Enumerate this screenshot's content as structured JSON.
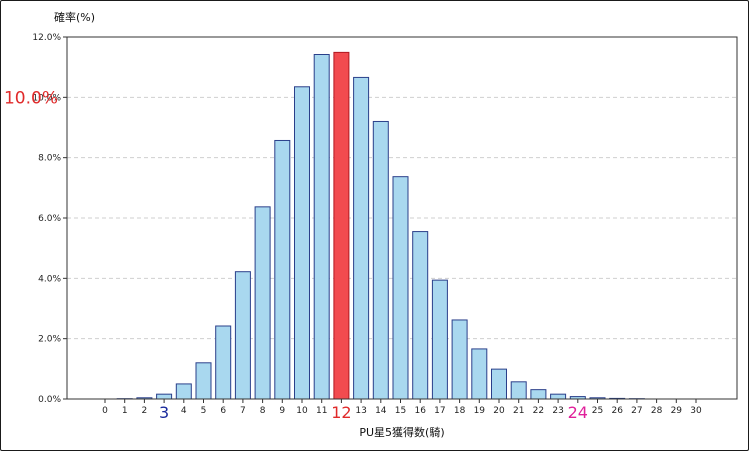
{
  "chart_data": {
    "type": "bar",
    "xlabel": "PU星5獲得数(騎)",
    "ylabel": "確率(%)",
    "ylim": [
      0,
      12
    ],
    "yticks": [
      0,
      2,
      4,
      6,
      8,
      10,
      12
    ],
    "ytick_labels": [
      "0.0%",
      "2.0%",
      "4.0%",
      "6.0%",
      "8.0%",
      "10.0%",
      "12.0%"
    ],
    "grid": "horizontal-dashed",
    "categories": [
      "0",
      "1",
      "2",
      "3",
      "4",
      "5",
      "6",
      "7",
      "8",
      "9",
      "10",
      "11",
      "12",
      "13",
      "14",
      "15",
      "16",
      "17",
      "18",
      "19",
      "20",
      "21",
      "22",
      "23",
      "24",
      "25",
      "26",
      "27",
      "28",
      "29",
      "30"
    ],
    "values": [
      0,
      0.01,
      0.04,
      0.16,
      0.5,
      1.2,
      2.42,
      4.22,
      6.37,
      8.57,
      10.35,
      11.42,
      11.49,
      10.66,
      9.2,
      7.37,
      5.55,
      3.94,
      2.62,
      1.66,
      0.99,
      0.57,
      0.31,
      0.16,
      0.08,
      0.04,
      0.02,
      0.01,
      0,
      0,
      0
    ],
    "highlight_index": 12,
    "colors": {
      "bar_fill": "#a9d8ef",
      "bar_stroke": "#2a3f8a",
      "highlight_fill": "#f24b4f",
      "highlight_stroke": "#b01820",
      "grid": "#cfcfcf"
    },
    "annotations": [
      {
        "text": "10.0%",
        "target": "y",
        "value": 10,
        "color": "#e02a2a"
      },
      {
        "text": "3",
        "target": "x",
        "value": "3",
        "color": "#1a2a9c"
      },
      {
        "text": "12",
        "target": "x",
        "value": "12",
        "color": "#e02a2a"
      },
      {
        "text": "24",
        "target": "x",
        "value": "24",
        "color": "#e0209a"
      }
    ]
  }
}
